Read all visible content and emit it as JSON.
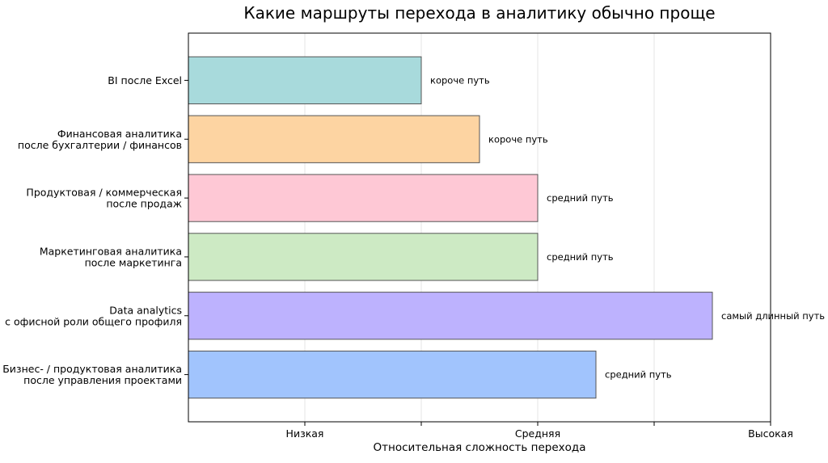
{
  "chart_data": {
    "type": "bar",
    "orientation": "horizontal",
    "title": "Какие маршруты перехода в аналитику обычно проще",
    "xlabel": "Относительная сложность перехода",
    "ylabel": "",
    "xlim": [
      0,
      5
    ],
    "x_ticks": [
      {
        "value": 1,
        "label": "Низкая"
      },
      {
        "value": 2,
        "label": ""
      },
      {
        "value": 3,
        "label": "Средняя"
      },
      {
        "value": 4,
        "label": ""
      },
      {
        "value": 5,
        "label": "Высокая"
      }
    ],
    "grid": true,
    "categories": [
      [
        "BI после Excel"
      ],
      [
        "Финансовая аналитика",
        "после бухгалтерии / финансов"
      ],
      [
        "Продуктовая / коммерческая",
        "после продаж"
      ],
      [
        "Маркетинговая аналитика",
        "после маркетинга"
      ],
      [
        "Data analytics",
        "с офисной роли общего профиля"
      ],
      [
        "Бизнес- / продуктовая аналитика",
        "после управления проектами"
      ]
    ],
    "values": [
      2.0,
      2.5,
      3.0,
      3.0,
      4.5,
      3.5
    ],
    "bar_labels": [
      "короче путь",
      "короче путь",
      "средний путь",
      "средний путь",
      "самый длинный путь",
      "средний путь"
    ],
    "colors": [
      "#a8dadc",
      "#fdd4a2",
      "#fec8d5",
      "#cdeac4",
      "#bdb2fe",
      "#a1c4fd"
    ],
    "edge_color": "#555555"
  }
}
